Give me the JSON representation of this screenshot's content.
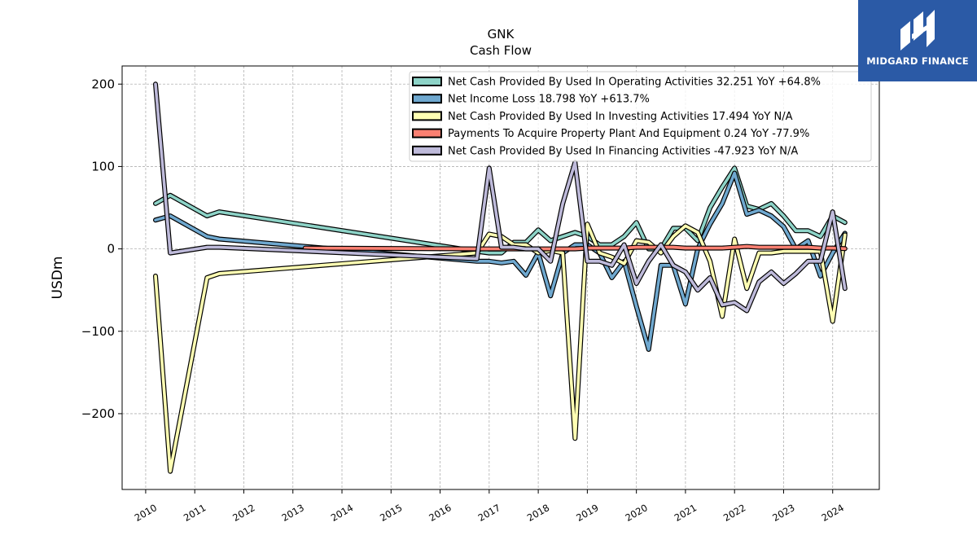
{
  "header": {
    "ticker": "GNK",
    "subtitle": "Cash Flow"
  },
  "brand": {
    "name": "MIDGARD FINANCE",
    "color": "#2b5aa6",
    "icon": "midgard-logo-icon"
  },
  "chart_data": {
    "type": "line",
    "title": "GNK",
    "subtitle": "Cash Flow",
    "xlabel": "",
    "ylabel": "USDm",
    "xlim": [
      2009.52,
      2024.95
    ],
    "ylim": [
      -292,
      222
    ],
    "xticks": [
      2010,
      2011,
      2012,
      2013,
      2014,
      2015,
      2016,
      2017,
      2018,
      2019,
      2020,
      2021,
      2022,
      2023,
      2024
    ],
    "xtick_labels": [
      "2010",
      "2011",
      "2012",
      "2013",
      "2014",
      "2015",
      "2016",
      "2017",
      "2018",
      "2019",
      "2020",
      "2021",
      "2022",
      "2023",
      "2024"
    ],
    "yticks": [
      200,
      100,
      0,
      -100,
      -200
    ],
    "ytick_labels": [
      "200",
      "100",
      "0",
      "−100",
      "−200"
    ],
    "grid": true,
    "legend_position": "top-right",
    "series": [
      {
        "name": "Net Cash Provided By Used In Operating Activities",
        "legend": "Net Cash Provided By Used In Operating Activities  32.251 YoY +64.8%",
        "color": "#8dd3c7",
        "points": [
          [
            2010.2,
            55
          ],
          [
            2010.5,
            65
          ],
          [
            2011.25,
            40
          ],
          [
            2011.5,
            45
          ],
          [
            2016.75,
            -3
          ],
          [
            2017.0,
            -5
          ],
          [
            2017.25,
            -5
          ],
          [
            2017.5,
            8
          ],
          [
            2017.75,
            8
          ],
          [
            2018.0,
            23
          ],
          [
            2018.25,
            10
          ],
          [
            2018.5,
            15
          ],
          [
            2018.75,
            20
          ],
          [
            2019.0,
            15
          ],
          [
            2019.25,
            5
          ],
          [
            2019.5,
            5
          ],
          [
            2019.75,
            15
          ],
          [
            2020.0,
            32
          ],
          [
            2020.25,
            0
          ],
          [
            2020.5,
            0
          ],
          [
            2020.75,
            25
          ],
          [
            2021.0,
            25
          ],
          [
            2021.25,
            10
          ],
          [
            2021.5,
            50
          ],
          [
            2021.75,
            75
          ],
          [
            2022.0,
            98
          ],
          [
            2022.25,
            52
          ],
          [
            2022.5,
            48
          ],
          [
            2022.75,
            55
          ],
          [
            2023.0,
            40
          ],
          [
            2023.25,
            22
          ],
          [
            2023.5,
            22
          ],
          [
            2023.75,
            15
          ],
          [
            2024.0,
            40
          ],
          [
            2024.25,
            32
          ]
        ]
      },
      {
        "name": "Net Income Loss",
        "legend": "Net Income Loss  18.798 YoY +613.7%",
        "color": "#6fa8cf",
        "points": [
          [
            2010.2,
            35
          ],
          [
            2010.5,
            40
          ],
          [
            2011.25,
            15
          ],
          [
            2011.5,
            12
          ],
          [
            2016.75,
            -15
          ],
          [
            2017.0,
            -15
          ],
          [
            2017.25,
            -17
          ],
          [
            2017.5,
            -15
          ],
          [
            2017.75,
            -32
          ],
          [
            2018.0,
            -5
          ],
          [
            2018.25,
            -57
          ],
          [
            2018.5,
            -5
          ],
          [
            2018.75,
            5
          ],
          [
            2019.0,
            5
          ],
          [
            2019.25,
            -5
          ],
          [
            2019.5,
            -35
          ],
          [
            2019.75,
            -15
          ],
          [
            2020.0,
            -70
          ],
          [
            2020.25,
            -122
          ],
          [
            2020.5,
            -20
          ],
          [
            2020.75,
            -20
          ],
          [
            2021.0,
            -67
          ],
          [
            2021.25,
            0
          ],
          [
            2021.5,
            30
          ],
          [
            2021.75,
            55
          ],
          [
            2022.0,
            92
          ],
          [
            2022.25,
            42
          ],
          [
            2022.5,
            47
          ],
          [
            2022.75,
            40
          ],
          [
            2023.0,
            27
          ],
          [
            2023.25,
            0
          ],
          [
            2023.5,
            10
          ],
          [
            2023.75,
            -33
          ],
          [
            2024.0,
            -5
          ],
          [
            2024.25,
            19
          ]
        ]
      },
      {
        "name": "Net Cash Provided By Used In Investing Activities",
        "legend": "Net Cash Provided By Used In Investing Activities  17.494 YoY N/A",
        "color": "#ffffb3",
        "points": [
          [
            2010.2,
            -33
          ],
          [
            2010.5,
            -270
          ],
          [
            2011.25,
            -35
          ],
          [
            2011.5,
            -30
          ],
          [
            2016.75,
            -5
          ],
          [
            2017.0,
            18
          ],
          [
            2017.25,
            15
          ],
          [
            2017.5,
            5
          ],
          [
            2017.75,
            5
          ],
          [
            2018.0,
            -5
          ],
          [
            2018.25,
            -2
          ],
          [
            2018.5,
            -5
          ],
          [
            2018.75,
            -230
          ],
          [
            2019.0,
            30
          ],
          [
            2019.25,
            -5
          ],
          [
            2019.5,
            -10
          ],
          [
            2019.75,
            -18
          ],
          [
            2020.0,
            10
          ],
          [
            2020.25,
            8
          ],
          [
            2020.5,
            -5
          ],
          [
            2020.75,
            15
          ],
          [
            2021.0,
            28
          ],
          [
            2021.25,
            20
          ],
          [
            2021.5,
            -15
          ],
          [
            2021.75,
            -82
          ],
          [
            2022.0,
            12
          ],
          [
            2022.25,
            -48
          ],
          [
            2022.5,
            -5
          ],
          [
            2022.75,
            -5
          ],
          [
            2023.0,
            -3
          ],
          [
            2023.25,
            -3
          ],
          [
            2023.5,
            -3
          ],
          [
            2023.75,
            -3
          ],
          [
            2024.0,
            -88
          ],
          [
            2024.25,
            17
          ]
        ]
      },
      {
        "name": "Payments To Acquire Property Plant And Equipment",
        "legend": "Payments To Acquire Property Plant And Equipment  0.24 YoY -77.9%",
        "color": "#fb8072",
        "points": [
          [
            2013.25,
            1
          ],
          [
            2016.75,
            0
          ],
          [
            2017.0,
            0
          ],
          [
            2017.25,
            0
          ],
          [
            2017.5,
            0
          ],
          [
            2017.75,
            0
          ],
          [
            2018.0,
            0
          ],
          [
            2018.25,
            0
          ],
          [
            2018.5,
            0
          ],
          [
            2018.75,
            0
          ],
          [
            2019.0,
            1
          ],
          [
            2019.25,
            1
          ],
          [
            2019.5,
            1
          ],
          [
            2019.75,
            1
          ],
          [
            2020.0,
            2
          ],
          [
            2020.25,
            2
          ],
          [
            2020.5,
            2
          ],
          [
            2020.75,
            2
          ],
          [
            2021.0,
            1
          ],
          [
            2021.25,
            1
          ],
          [
            2021.5,
            1
          ],
          [
            2021.75,
            1
          ],
          [
            2022.0,
            2
          ],
          [
            2022.25,
            3
          ],
          [
            2022.5,
            2
          ],
          [
            2022.75,
            2
          ],
          [
            2023.0,
            2
          ],
          [
            2023.25,
            2
          ],
          [
            2023.5,
            2
          ],
          [
            2023.75,
            1
          ],
          [
            2024.0,
            1
          ],
          [
            2024.25,
            0.24
          ]
        ]
      },
      {
        "name": "Net Cash Provided By Used In Financing Activities",
        "legend": "Net Cash Provided By Used In Financing Activities  -47.923 YoY N/A",
        "color": "#bebada",
        "points": [
          [
            2010.2,
            200
          ],
          [
            2010.5,
            -5
          ],
          [
            2011.25,
            2
          ],
          [
            2011.5,
            2
          ],
          [
            2016.75,
            -12
          ],
          [
            2017.0,
            98
          ],
          [
            2017.25,
            2
          ],
          [
            2017.5,
            2
          ],
          [
            2017.75,
            0
          ],
          [
            2018.0,
            0
          ],
          [
            2018.25,
            -15
          ],
          [
            2018.5,
            55
          ],
          [
            2018.75,
            105
          ],
          [
            2019.0,
            -15
          ],
          [
            2019.25,
            -15
          ],
          [
            2019.5,
            -20
          ],
          [
            2019.75,
            5
          ],
          [
            2020.0,
            -42
          ],
          [
            2020.25,
            -15
          ],
          [
            2020.5,
            5
          ],
          [
            2020.75,
            -20
          ],
          [
            2021.0,
            -28
          ],
          [
            2021.25,
            -50
          ],
          [
            2021.5,
            -35
          ],
          [
            2021.75,
            -68
          ],
          [
            2022.0,
            -65
          ],
          [
            2022.25,
            -75
          ],
          [
            2022.5,
            -40
          ],
          [
            2022.75,
            -28
          ],
          [
            2023.0,
            -42
          ],
          [
            2023.25,
            -30
          ],
          [
            2023.5,
            -15
          ],
          [
            2023.75,
            -15
          ],
          [
            2024.0,
            45
          ],
          [
            2024.25,
            -48
          ]
        ]
      }
    ]
  }
}
